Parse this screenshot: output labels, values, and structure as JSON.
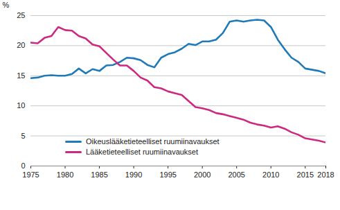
{
  "chart_data": {
    "type": "line",
    "y_label": "%",
    "x": [
      1975,
      1976,
      1977,
      1978,
      1979,
      1980,
      1981,
      1982,
      1983,
      1984,
      1985,
      1986,
      1987,
      1988,
      1989,
      1990,
      1991,
      1992,
      1993,
      1994,
      1995,
      1996,
      1997,
      1998,
      1999,
      2000,
      2001,
      2002,
      2003,
      2004,
      2005,
      2006,
      2007,
      2008,
      2009,
      2010,
      2011,
      2012,
      2013,
      2014,
      2015,
      2016,
      2017,
      2018
    ],
    "series": [
      {
        "name": "Oikeuslääketieteelliset ruumiinavaukset",
        "color": "#1f7ab8",
        "values": [
          14.6,
          14.7,
          15.0,
          15.1,
          15.0,
          15.0,
          15.3,
          16.2,
          15.4,
          16.1,
          15.8,
          16.7,
          16.8,
          17.3,
          18.0,
          17.9,
          17.6,
          16.8,
          16.4,
          18.0,
          18.6,
          18.9,
          19.5,
          20.3,
          20.1,
          20.7,
          20.7,
          21.0,
          22.1,
          24.0,
          24.2,
          24.0,
          24.2,
          24.3,
          24.2,
          23.1,
          21.0,
          19.4,
          18.0,
          17.3,
          16.2,
          16.0,
          15.8,
          15.4
        ]
      },
      {
        "name": "Lääketieteelliset ruumiinavaukset",
        "color": "#cc2a80",
        "values": [
          20.5,
          20.4,
          21.3,
          21.6,
          23.1,
          22.6,
          22.5,
          21.6,
          21.2,
          20.2,
          19.9,
          18.8,
          17.7,
          16.7,
          16.7,
          15.8,
          14.7,
          14.2,
          13.1,
          12.9,
          12.4,
          12.1,
          11.8,
          10.8,
          9.8,
          9.6,
          9.3,
          8.8,
          8.6,
          8.3,
          8.0,
          7.7,
          7.2,
          6.9,
          6.7,
          6.4,
          6.6,
          6.2,
          5.6,
          5.2,
          4.6,
          4.4,
          4.2,
          3.9
        ]
      }
    ],
    "xlim": [
      1975,
      2018
    ],
    "xticks": [
      1975,
      1980,
      1985,
      1990,
      1995,
      2000,
      2005,
      2010,
      2015,
      2018
    ],
    "ylim": [
      0,
      25
    ],
    "yticks": [
      0,
      5,
      10,
      15,
      20,
      25
    ],
    "grid": true,
    "legend": "bottom-left"
  }
}
